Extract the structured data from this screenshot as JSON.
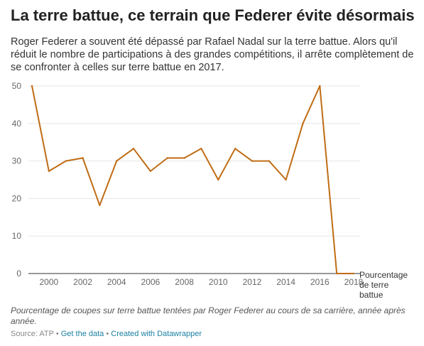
{
  "header": {
    "title": "La terre battue, ce terrain que Federer évite désormais",
    "subtitle": "Roger Federer a souvent été dépassé par Rafael Nadal sur la terre battue. Alors qu'il réduit le nombre de participations à des grandes compétitions, il arrête complètement de se confronter à celles sur terre battue en 2017."
  },
  "footer": {
    "description": "Pourcentage de coupes sur terre battue tentées par Roger Federer au cours de sa carrière, année après année.",
    "source": "Source: ATP",
    "sep1": "•",
    "get_data": "Get the data",
    "sep2": "•",
    "created_with": "Created with Datawrapper"
  },
  "colors": {
    "line": "#c06c14",
    "grid": "#e6e6e6",
    "baseline": "#333333"
  },
  "chart_data": {
    "type": "line",
    "x": [
      1999,
      2000,
      2001,
      2002,
      2003,
      2004,
      2005,
      2006,
      2007,
      2008,
      2009,
      2010,
      2011,
      2012,
      2013,
      2014,
      2015,
      2016,
      2017,
      2018
    ],
    "series": [
      {
        "name": "Pourcentage de terre battue",
        "values": [
          50,
          27.3,
          30,
          30.8,
          18.2,
          30,
          33.3,
          27.3,
          30.8,
          30.8,
          33.3,
          25,
          33.3,
          30,
          30,
          25,
          40,
          50,
          0,
          0
        ]
      }
    ],
    "ylim": [
      0,
      50
    ],
    "yticks": [
      0,
      10,
      20,
      30,
      40,
      50
    ],
    "xticks": [
      2000,
      2002,
      2004,
      2006,
      2008,
      2010,
      2012,
      2014,
      2016,
      2018
    ],
    "end_label": [
      "Pourcentage",
      "de terre",
      "battue"
    ],
    "grid": true,
    "xlabel": "",
    "ylabel": ""
  }
}
